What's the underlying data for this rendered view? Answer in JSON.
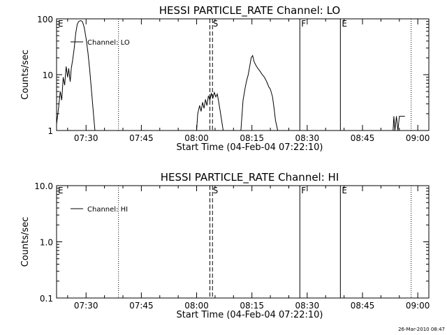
{
  "footer_timestamp": "26-Mar-2010 08:47",
  "chart_data": [
    {
      "type": "line",
      "title": "HESSI PARTICLE_RATE Channel: LO",
      "xlabel": "Start Time (04-Feb-04 07:22:10)",
      "ylabel": "Counts/sec",
      "yscale": "log",
      "ylim": [
        1,
        100
      ],
      "xlim": [
        "07:22",
        "09:03"
      ],
      "yticks": [
        "1",
        "10",
        "100"
      ],
      "xticks": [
        "07:30",
        "07:45",
        "08:00",
        "08:15",
        "08:30",
        "08:45",
        "09:00"
      ],
      "grid": false,
      "legend_position": "top-left",
      "series": [
        {
          "name": "Channel: LO",
          "color": "#000000",
          "points": [
            [
              "07:22",
              1.3
            ],
            [
              "07:22.5",
              2.4
            ],
            [
              "07:23",
              5.0
            ],
            [
              "07:23.4",
              3.5
            ],
            [
              "07:23.8",
              9.0
            ],
            [
              "07:24.2",
              6.5
            ],
            [
              "07:24.6",
              14.0
            ],
            [
              "07:25",
              9.0
            ],
            [
              "07:25.3",
              13.0
            ],
            [
              "07:25.7",
              7.5
            ],
            [
              "07:26",
              13.0
            ],
            [
              "07:26.4",
              19.0
            ],
            [
              "07:26.8",
              30.0
            ],
            [
              "07:27.2",
              55.0
            ],
            [
              "07:27.6",
              80.0
            ],
            [
              "07:28",
              90.0
            ],
            [
              "07:28.5",
              93.0
            ],
            [
              "07:29",
              90.0
            ],
            [
              "07:29.5",
              70.0
            ],
            [
              "07:30",
              45.0
            ],
            [
              "07:30.5",
              25.0
            ],
            [
              "07:31",
              12.0
            ],
            [
              "07:31.5",
              5.0
            ],
            [
              "07:32",
              2.0
            ],
            [
              "07:32.4",
              1.0
            ]
          ]
        },
        {
          "name": "Channel: LO",
          "color": "#000000",
          "points": [
            [
              "08:00",
              1.0
            ],
            [
              "08:00.3",
              2.0
            ],
            [
              "08:00.8",
              2.8
            ],
            [
              "08:01.2",
              2.2
            ],
            [
              "08:01.6",
              3.2
            ],
            [
              "08:02",
              2.5
            ],
            [
              "08:02.4",
              3.6
            ],
            [
              "08:02.8",
              2.8
            ],
            [
              "08:03.2",
              4.2
            ],
            [
              "08:03.6",
              3.5
            ],
            [
              "08:04",
              4.6
            ],
            [
              "08:04.4",
              3.8
            ],
            [
              "08:04.8",
              4.8
            ],
            [
              "08:05.2",
              4.0
            ],
            [
              "08:05.6",
              4.5
            ],
            [
              "08:06",
              3.2
            ],
            [
              "08:06.4",
              2.2
            ],
            [
              "08:06.8",
              1.5
            ],
            [
              "08:07.2",
              1.0
            ]
          ]
        },
        {
          "name": "Channel: LO",
          "color": "#000000",
          "points": [
            [
              "08:12",
              1.0
            ],
            [
              "08:12.6",
              3.5
            ],
            [
              "08:13.2",
              6.0
            ],
            [
              "08:13.6",
              8.0
            ],
            [
              "08:14",
              10.0
            ],
            [
              "08:14.4",
              14.0
            ],
            [
              "08:14.8",
              20.0
            ],
            [
              "08:15.2",
              22.0
            ],
            [
              "08:15.6",
              17.0
            ],
            [
              "08:16",
              15.0
            ],
            [
              "08:16.6",
              13.0
            ],
            [
              "08:17.2",
              11.5
            ],
            [
              "08:17.8",
              10.0
            ],
            [
              "08:18.4",
              9.0
            ],
            [
              "08:19",
              7.5
            ],
            [
              "08:19.6",
              6.0
            ],
            [
              "08:20",
              5.5
            ],
            [
              "08:20.6",
              4.0
            ],
            [
              "08:21",
              2.5
            ],
            [
              "08:21.4",
              1.5
            ],
            [
              "08:22",
              1.0
            ]
          ]
        },
        {
          "name": "Channel: LO",
          "color": "#000000",
          "points": [
            [
              "08:53.3",
              1.0
            ],
            [
              "08:53.5",
              1.8
            ],
            [
              "08:53.8",
              1.0
            ],
            [
              "08:54.2",
              1.8
            ],
            [
              "08:54.6",
              1.0
            ],
            [
              "08:55",
              1.8
            ],
            [
              "08:56.5",
              1.8
            ]
          ]
        }
      ],
      "annotations": [
        {
          "text": "E",
          "at": "07:22"
        },
        {
          "text": "S",
          "at": "08:04"
        },
        {
          "text": "F",
          "at": "08:28"
        },
        {
          "text": "E",
          "at": "08:39"
        }
      ],
      "vertical_markers": [
        {
          "at": "07:38.8",
          "style": "dotted"
        },
        {
          "at": "08:03.6",
          "style": "dashed"
        },
        {
          "at": "08:04.3",
          "style": "dashed"
        },
        {
          "at": "08:28",
          "style": "solid"
        },
        {
          "at": "08:39",
          "style": "solid"
        },
        {
          "at": "08:58.2",
          "style": "dotted"
        }
      ]
    },
    {
      "type": "line",
      "title": "HESSI PARTICLE_RATE Channel: HI",
      "xlabel": "Start Time (04-Feb-04 07:22:10)",
      "ylabel": "Counts/sec",
      "yscale": "log",
      "ylim": [
        0.1,
        10.0
      ],
      "xlim": [
        "07:22",
        "09:03"
      ],
      "yticks": [
        "0.1",
        "1.0",
        "10.0"
      ],
      "xticks": [
        "07:30",
        "07:45",
        "08:00",
        "08:15",
        "08:30",
        "08:45",
        "09:00"
      ],
      "grid": false,
      "legend_position": "top-left",
      "series": [
        {
          "name": "Channel: HI",
          "color": "#000000",
          "points": []
        }
      ],
      "annotations": [
        {
          "text": "E",
          "at": "07:22"
        },
        {
          "text": "S",
          "at": "08:04"
        },
        {
          "text": "F",
          "at": "08:28"
        },
        {
          "text": "E",
          "at": "08:39"
        }
      ],
      "vertical_markers": [
        {
          "at": "07:38.8",
          "style": "dotted"
        },
        {
          "at": "08:03.6",
          "style": "dashed"
        },
        {
          "at": "08:04.3",
          "style": "dashed"
        },
        {
          "at": "08:28",
          "style": "solid"
        },
        {
          "at": "08:39",
          "style": "solid"
        },
        {
          "at": "08:58.2",
          "style": "dotted"
        }
      ]
    }
  ]
}
